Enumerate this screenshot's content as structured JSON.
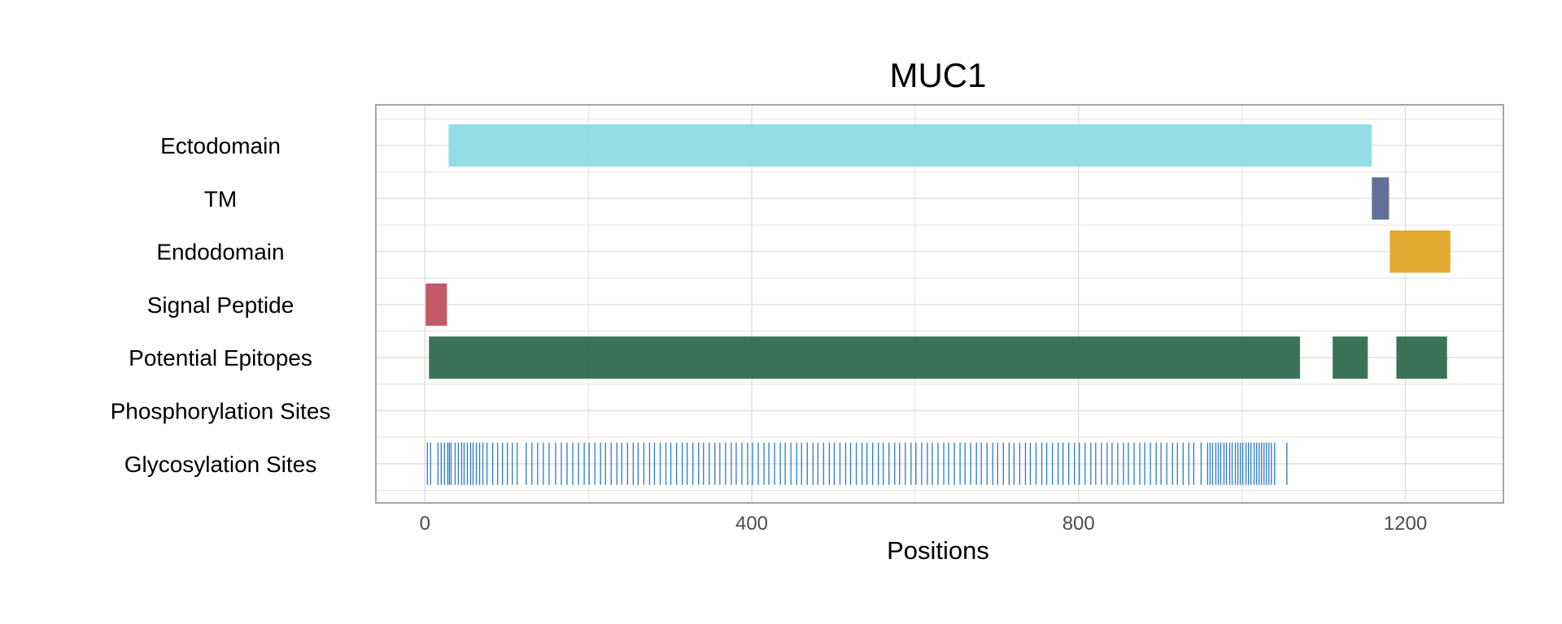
{
  "chart_data": {
    "type": "bar",
    "orientation": "horizontal-range",
    "title": "MUC1",
    "xlabel": "Positions",
    "ylabel": "",
    "xlim": [
      -60,
      1320
    ],
    "xticks": [
      0,
      400,
      800,
      1200
    ],
    "xtick_labels": [
      "0",
      "400",
      "800",
      "1200"
    ],
    "grid": true,
    "tracks": [
      {
        "label": "Ectodomain",
        "color": "#8fdbe4",
        "segments": [
          [
            29,
            1159
          ]
        ]
      },
      {
        "label": "TM",
        "color": "#5b6791",
        "segments": [
          [
            1159,
            1180
          ]
        ]
      },
      {
        "label": "Endodomain",
        "color": "#dea423",
        "segments": [
          [
            1181,
            1255
          ]
        ]
      },
      {
        "label": "Signal Peptide",
        "color": "#c0505f",
        "segments": [
          [
            1,
            27
          ]
        ]
      },
      {
        "label": "Potential Epitopes",
        "color": "#2f6b50",
        "segments": [
          [
            5,
            1071
          ],
          [
            1111,
            1154
          ],
          [
            1189,
            1251
          ]
        ]
      },
      {
        "label": "Phosphorylation Sites",
        "color": "#2b7bc4",
        "segments": []
      },
      {
        "label": "Glycosylation Sites",
        "color": "#2b7bc4",
        "sites": [
          3,
          7,
          16,
          20,
          24,
          28,
          30,
          32,
          37,
          41,
          45,
          48,
          52,
          56,
          59,
          63,
          67,
          71,
          76,
          83,
          89,
          95,
          101,
          107,
          113,
          124,
          131,
          138,
          145,
          152,
          160,
          167,
          174,
          181,
          188,
          195,
          201,
          208,
          215,
          221,
          228,
          235,
          241,
          248,
          255,
          261,
          268,
          275,
          281,
          288,
          295,
          301,
          308,
          315,
          321,
          328,
          335,
          341,
          348,
          355,
          361,
          368,
          375,
          381,
          388,
          395,
          401,
          408,
          415,
          421,
          428,
          435,
          441,
          448,
          455,
          461,
          468,
          475,
          481,
          488,
          495,
          501,
          508,
          515,
          521,
          528,
          535,
          541,
          548,
          555,
          561,
          568,
          575,
          581,
          588,
          595,
          601,
          608,
          615,
          621,
          628,
          635,
          641,
          648,
          655,
          661,
          668,
          675,
          681,
          688,
          695,
          701,
          708,
          715,
          721,
          728,
          735,
          741,
          748,
          755,
          761,
          768,
          775,
          781,
          788,
          795,
          801,
          808,
          815,
          821,
          828,
          835,
          841,
          848,
          855,
          861,
          868,
          875,
          881,
          888,
          895,
          901,
          908,
          915,
          921,
          928,
          935,
          941,
          950,
          958,
          961,
          964,
          968,
          971,
          974,
          978,
          981,
          985,
          988,
          992,
          995,
          998,
          1001,
          1005,
          1008,
          1011,
          1015,
          1018,
          1021,
          1024,
          1027,
          1030,
          1033,
          1036,
          1040,
          1055
        ]
      }
    ]
  },
  "colors": {
    "panel_border": "#a6a6a6",
    "grid": "#e0e0e0",
    "tick_text": "#4d4d4d"
  }
}
